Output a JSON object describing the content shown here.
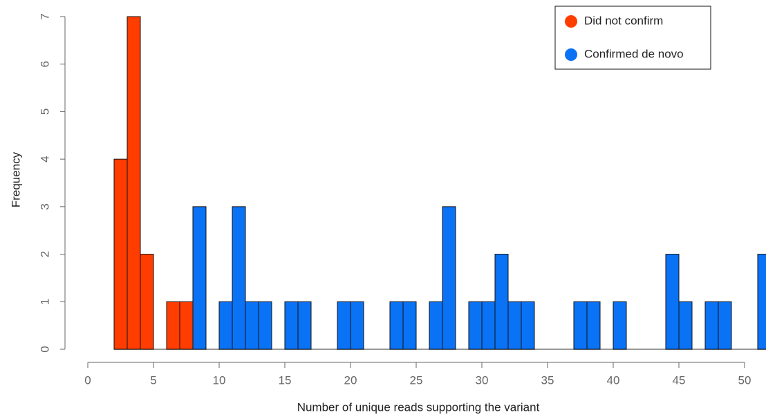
{
  "chart_data": {
    "type": "histogram",
    "x_label": "Number of unique reads supporting the variant",
    "y_label": "Frequency",
    "xlim": [
      0,
      50
    ],
    "xticks": [
      0,
      5,
      10,
      15,
      20,
      25,
      30,
      35,
      40,
      45,
      50
    ],
    "ylim": [
      0,
      7
    ],
    "yticks": [
      0,
      1,
      2,
      3,
      4,
      5,
      6,
      7
    ],
    "legend": "top-right",
    "series": [
      {
        "name": "Did not confirm",
        "color": "#ff3d00",
        "bins": [
          2,
          3,
          4,
          5,
          6,
          7,
          8
        ],
        "values": [
          4,
          7,
          2,
          0,
          1,
          1
        ]
      },
      {
        "name": "Confirmed de novo",
        "color": "#0a72f5",
        "bins": [
          8,
          9,
          10,
          11,
          12,
          13,
          14,
          15,
          16,
          17,
          18,
          19,
          20,
          21,
          22,
          23,
          24,
          25,
          26,
          27,
          28,
          29,
          30,
          31,
          32,
          33,
          34,
          35,
          36,
          37,
          38,
          39,
          40,
          41,
          42,
          43,
          44,
          45,
          46,
          47,
          48,
          49,
          50,
          51,
          52
        ],
        "values": [
          3,
          0,
          1,
          3,
          1,
          1,
          0,
          1,
          1,
          0,
          0,
          1,
          1,
          0,
          0,
          1,
          1,
          0,
          1,
          3,
          0,
          1,
          1,
          2,
          1,
          1,
          0,
          0,
          0,
          1,
          1,
          0,
          1,
          0,
          0,
          0,
          2,
          1,
          0,
          1,
          1,
          0,
          0,
          2
        ]
      }
    ]
  }
}
